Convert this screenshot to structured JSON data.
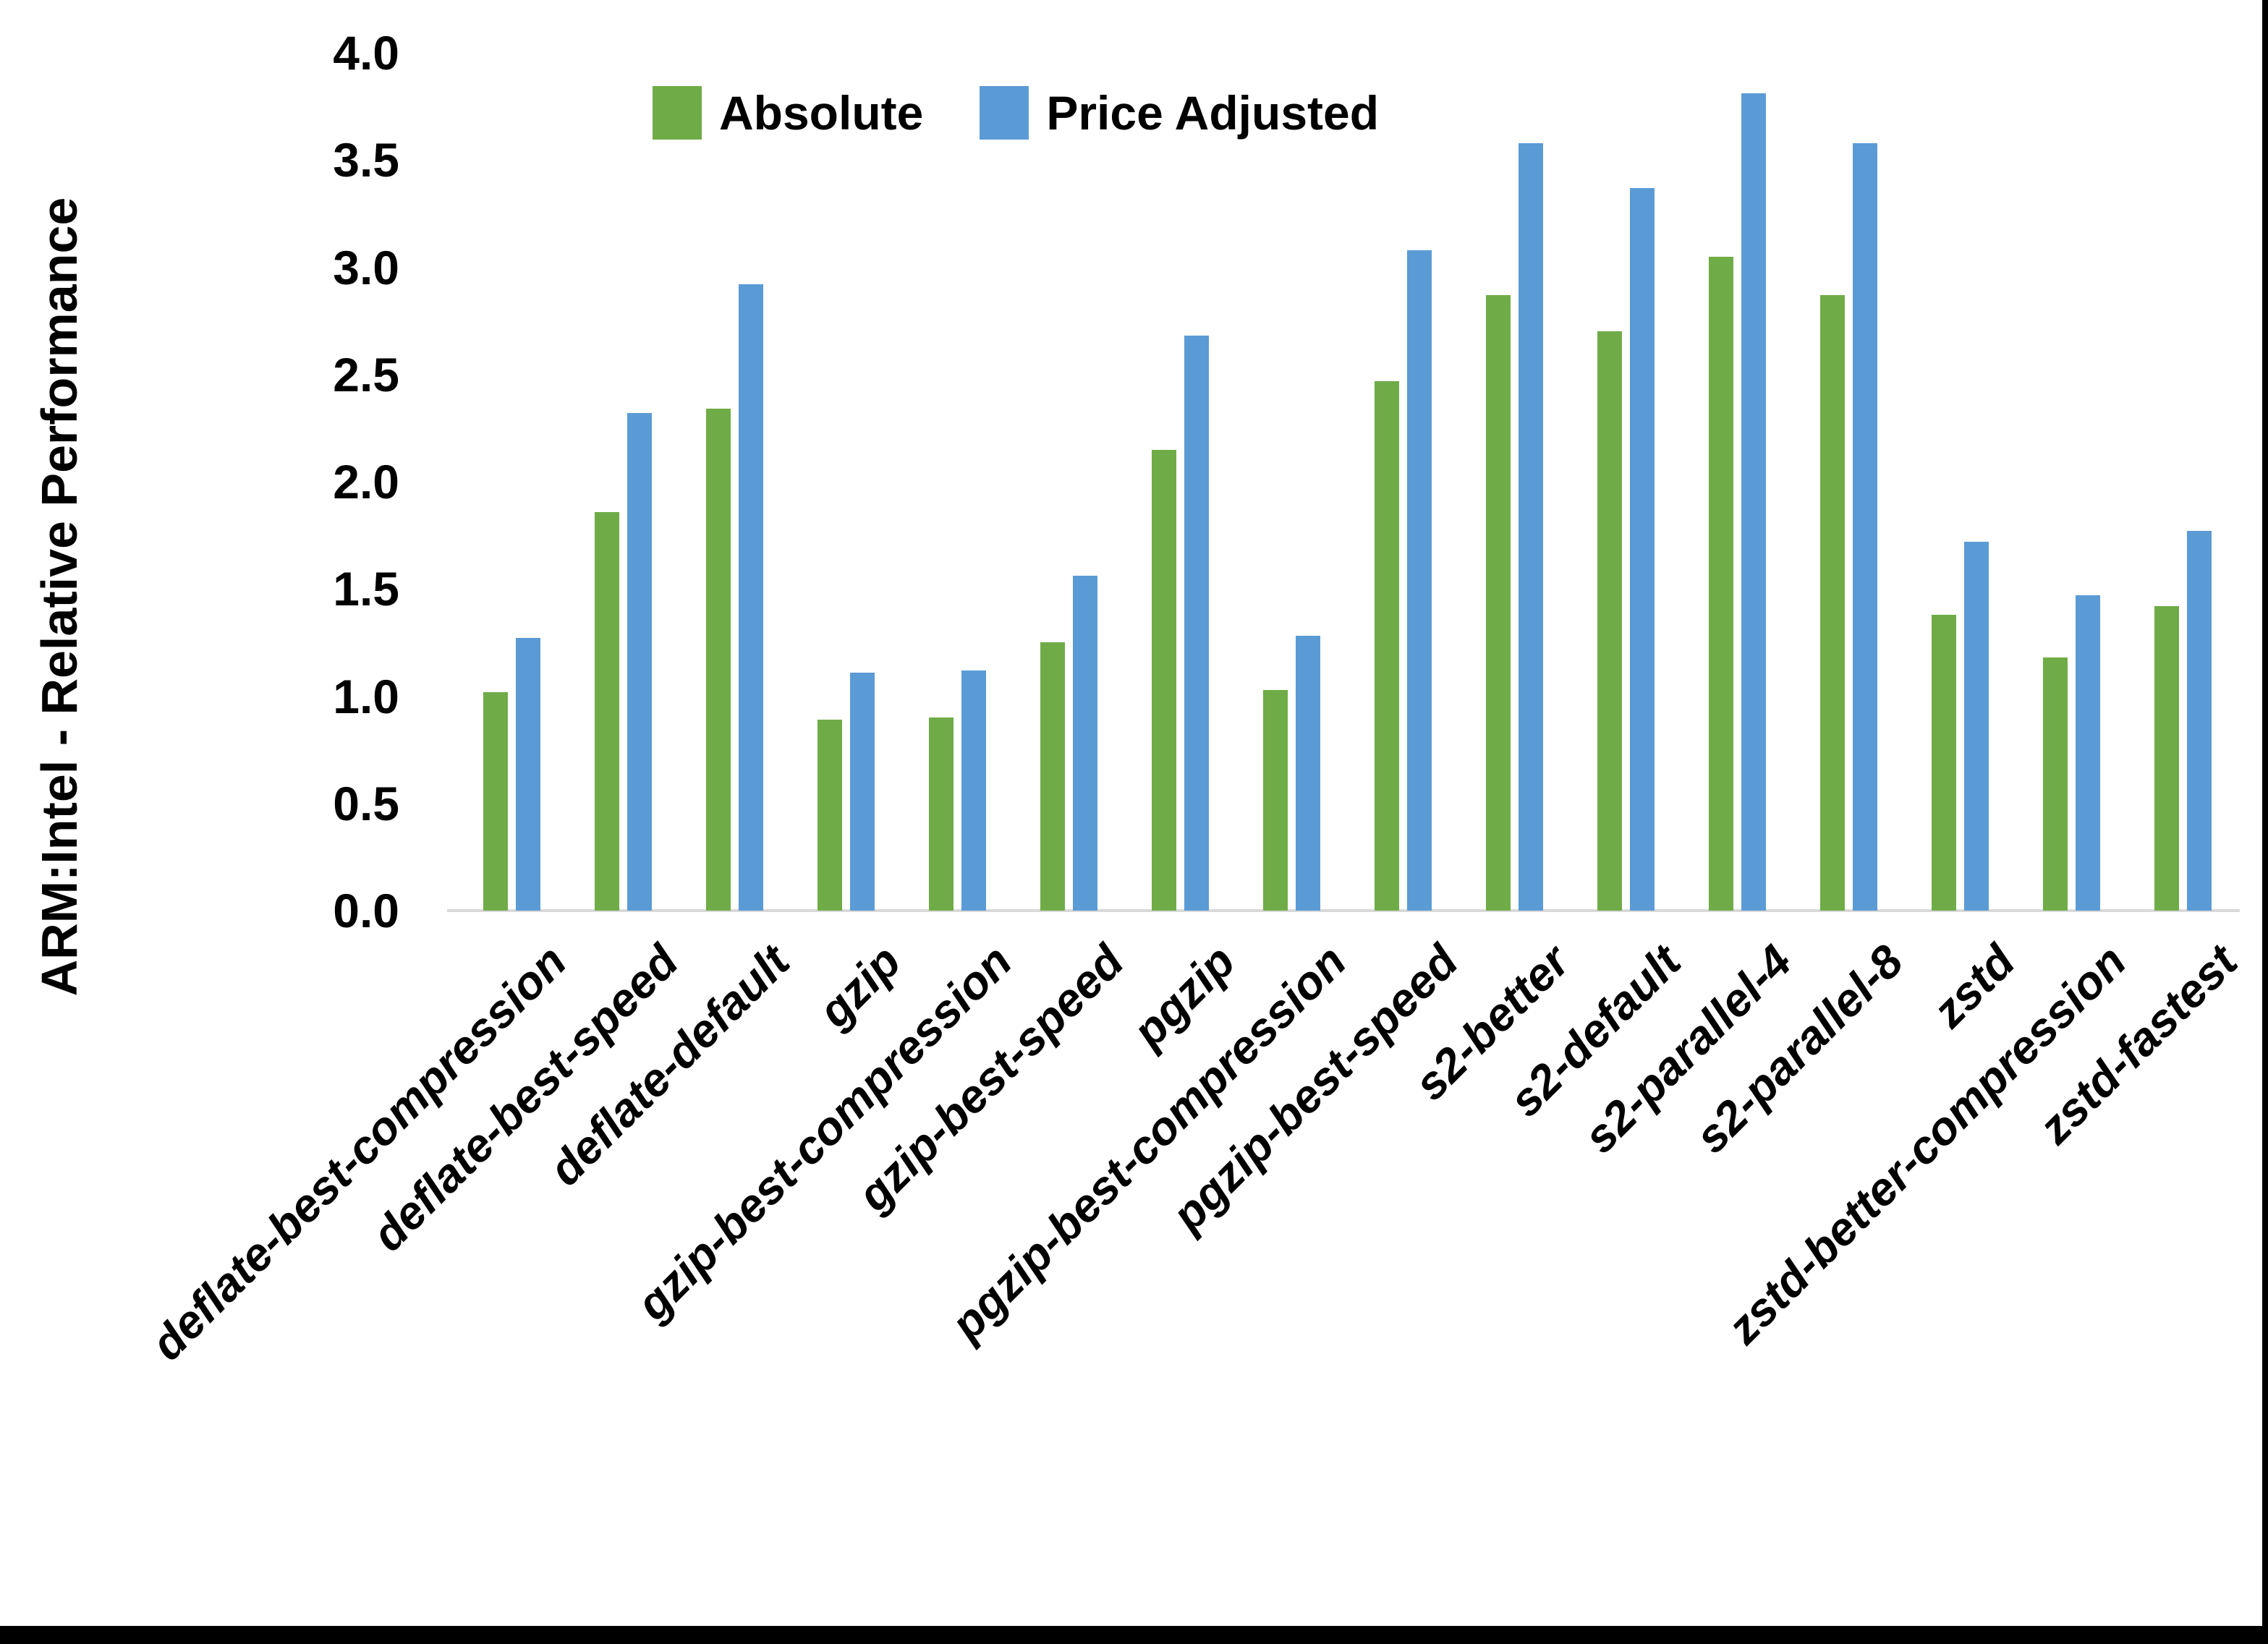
{
  "chart_data": {
    "type": "bar",
    "title": "",
    "ylabel": "ARM:Intel - Relative Performance",
    "xlabel": "",
    "ylim": [
      0.0,
      4.0
    ],
    "ytick_step": 0.5,
    "ytick_labels": [
      "4.0",
      "3.5",
      "3.0",
      "2.5",
      "2.0",
      "1.5",
      "1.0",
      "0.5",
      "0.0"
    ],
    "grid": false,
    "legend_position": "top-center",
    "axis_line_color": "#D9D9D9",
    "categories": [
      "deflate-best-compression",
      "deflate-best-speed",
      "deflate-default",
      "gzip",
      "gzip-best-compression",
      "gzip-best-speed",
      "pgzip",
      "pgzip-best-compression",
      "pgzip-best-speed",
      "s2-better",
      "s2-default",
      "s2-parallel-4",
      "s2-parallel-8",
      "zstd",
      "zstd-better-compression",
      "zstd-fastest"
    ],
    "series": [
      {
        "name": "Absolute",
        "color": "#6FAC47",
        "values": [
          1.02,
          1.86,
          2.34,
          0.89,
          0.9,
          1.25,
          2.15,
          1.03,
          2.47,
          2.87,
          2.7,
          3.05,
          2.87,
          1.38,
          1.18,
          1.42
        ]
      },
      {
        "name": "Price Adjusted",
        "color": "#5B9BD5",
        "values": [
          1.27,
          2.32,
          2.92,
          1.11,
          1.12,
          1.56,
          2.68,
          1.28,
          3.08,
          3.58,
          3.37,
          3.81,
          3.58,
          1.72,
          1.47,
          1.77
        ]
      }
    ]
  }
}
